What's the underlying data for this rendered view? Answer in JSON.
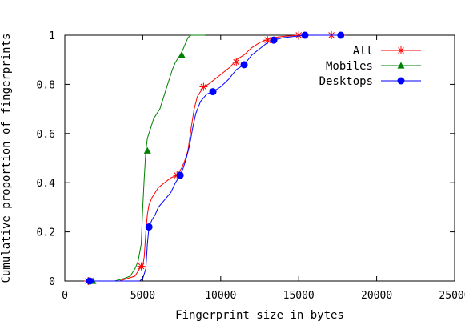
{
  "chart_data": {
    "type": "line",
    "xlabel": "Fingerprint size in bytes",
    "ylabel": "Cumulative proportion of fingerprints",
    "xlim": [
      0,
      25000
    ],
    "ylim": [
      0,
      1
    ],
    "x_ticks": [
      "0",
      "5000",
      "10000",
      "15000",
      "20000",
      "25000"
    ],
    "y_ticks": [
      "0",
      "0.2",
      "0.4",
      "0.6",
      "0.8",
      "1"
    ],
    "x_tick_values": [
      0,
      5000,
      10000,
      15000,
      20000,
      25000
    ],
    "y_tick_values": [
      0,
      0.2,
      0.4,
      0.6,
      0.8,
      1
    ],
    "grid": false,
    "legend_position": "top-right",
    "series": [
      {
        "name": "All",
        "color": "#ff0000",
        "marker": "asterisk",
        "x": [
          1500,
          3500,
          4500,
          4800,
          5000,
          5100,
          5200,
          5300,
          5400,
          5600,
          5800,
          6000,
          6400,
          6800,
          7200,
          7500,
          7700,
          7900,
          8100,
          8300,
          8500,
          8700,
          8900,
          9200,
          9600,
          10000,
          10600,
          11000,
          11500,
          12000,
          12500,
          12900,
          13300,
          14000,
          15000,
          16000,
          17100,
          18000
        ],
        "y": [
          0,
          0,
          0.02,
          0.05,
          0.06,
          0.1,
          0.2,
          0.27,
          0.31,
          0.34,
          0.36,
          0.38,
          0.4,
          0.42,
          0.43,
          0.46,
          0.49,
          0.53,
          0.62,
          0.7,
          0.75,
          0.77,
          0.79,
          0.8,
          0.82,
          0.84,
          0.87,
          0.9,
          0.92,
          0.95,
          0.97,
          0.98,
          0.99,
          0.995,
          1,
          1,
          1,
          1
        ],
        "marker_x": [
          1500,
          4900,
          7200,
          8900,
          11000,
          13000,
          15000,
          17100
        ],
        "marker_y": [
          0,
          0.06,
          0.43,
          0.79,
          0.89,
          0.98,
          1,
          1
        ]
      },
      {
        "name": "Mobiles",
        "color": "#008000",
        "marker": "triangle",
        "x": [
          1800,
          3200,
          3800,
          4200,
          4500,
          4700,
          4900,
          5000,
          5100,
          5200,
          5300,
          5500,
          5700,
          5900,
          6100,
          6300,
          6500,
          6700,
          6900,
          7100,
          7300,
          7500,
          7700,
          7900,
          8100,
          8300,
          9000
        ],
        "y": [
          0,
          0,
          0.01,
          0.02,
          0.05,
          0.08,
          0.15,
          0.3,
          0.42,
          0.53,
          0.58,
          0.62,
          0.66,
          0.68,
          0.7,
          0.74,
          0.78,
          0.82,
          0.86,
          0.89,
          0.91,
          0.93,
          0.96,
          0.99,
          1,
          1,
          1
        ],
        "marker_x": [
          1800,
          5300,
          7500
        ],
        "marker_y": [
          0,
          0.53,
          0.92
        ]
      },
      {
        "name": "Desktops",
        "color": "#0000ff",
        "marker": "circle",
        "x": [
          1500,
          4800,
          5000,
          5200,
          5300,
          5400,
          5600,
          5800,
          6000,
          6400,
          6800,
          7100,
          7400,
          7600,
          7800,
          8000,
          8200,
          8400,
          8700,
          9100,
          9500,
          10000,
          10500,
          11000,
          11500,
          12000,
          12600,
          13000,
          13400,
          14000,
          15400,
          16500,
          17700
        ],
        "y": [
          0,
          0,
          0.01,
          0.05,
          0.15,
          0.22,
          0.25,
          0.27,
          0.3,
          0.33,
          0.36,
          0.4,
          0.43,
          0.46,
          0.5,
          0.55,
          0.62,
          0.68,
          0.73,
          0.76,
          0.77,
          0.79,
          0.82,
          0.86,
          0.88,
          0.92,
          0.95,
          0.97,
          0.98,
          0.99,
          1,
          1,
          1
        ],
        "marker_x": [
          1600,
          5400,
          7400,
          9500,
          11500,
          13400,
          15400,
          17700
        ],
        "marker_y": [
          0,
          0.22,
          0.43,
          0.77,
          0.88,
          0.98,
          1,
          1
        ]
      }
    ]
  }
}
